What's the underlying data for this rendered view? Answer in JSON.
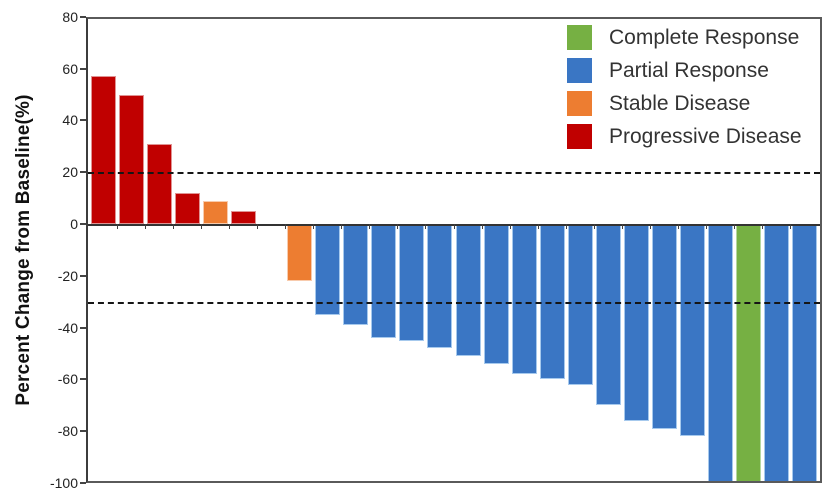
{
  "chart_data": {
    "type": "bar",
    "title": "",
    "ylabel": "Percent Change from Baseline(%)",
    "xlabel": "",
    "ylim": [
      -100,
      80
    ],
    "yticks": [
      80,
      60,
      40,
      20,
      0,
      -20,
      -40,
      -60,
      -80,
      -100
    ],
    "reference_lines": [
      20,
      -30
    ],
    "grid": false,
    "legend_position": "top-right",
    "legend": [
      {
        "key": "CR",
        "label": "Complete Response",
        "color": "#76B043"
      },
      {
        "key": "PR",
        "label": "Partial Response",
        "color": "#3A76C4"
      },
      {
        "key": "SD",
        "label": "Stable Disease",
        "color": "#ED7D31"
      },
      {
        "key": "PD",
        "label": "Progressive Disease",
        "color": "#C00000"
      }
    ],
    "bars": [
      {
        "value": 57,
        "response": "PD"
      },
      {
        "value": 50,
        "response": "PD"
      },
      {
        "value": 31,
        "response": "PD"
      },
      {
        "value": 12,
        "response": "PD"
      },
      {
        "value": 9,
        "response": "SD"
      },
      {
        "value": 5,
        "response": "PD"
      },
      {
        "value": 0,
        "response": "none"
      },
      {
        "value": -22,
        "response": "SD"
      },
      {
        "value": -35,
        "response": "PR"
      },
      {
        "value": -39,
        "response": "PR"
      },
      {
        "value": -44,
        "response": "PR"
      },
      {
        "value": -45,
        "response": "PR"
      },
      {
        "value": -48,
        "response": "PR"
      },
      {
        "value": -51,
        "response": "PR"
      },
      {
        "value": -54,
        "response": "PR"
      },
      {
        "value": -58,
        "response": "PR"
      },
      {
        "value": -60,
        "response": "PR"
      },
      {
        "value": -62,
        "response": "PR"
      },
      {
        "value": -70,
        "response": "PR"
      },
      {
        "value": -76,
        "response": "PR"
      },
      {
        "value": -79,
        "response": "PR"
      },
      {
        "value": -82,
        "response": "PR"
      },
      {
        "value": -100,
        "response": "PR"
      },
      {
        "value": -100,
        "response": "CR"
      },
      {
        "value": -100,
        "response": "PR"
      },
      {
        "value": -100,
        "response": "PR"
      }
    ]
  }
}
